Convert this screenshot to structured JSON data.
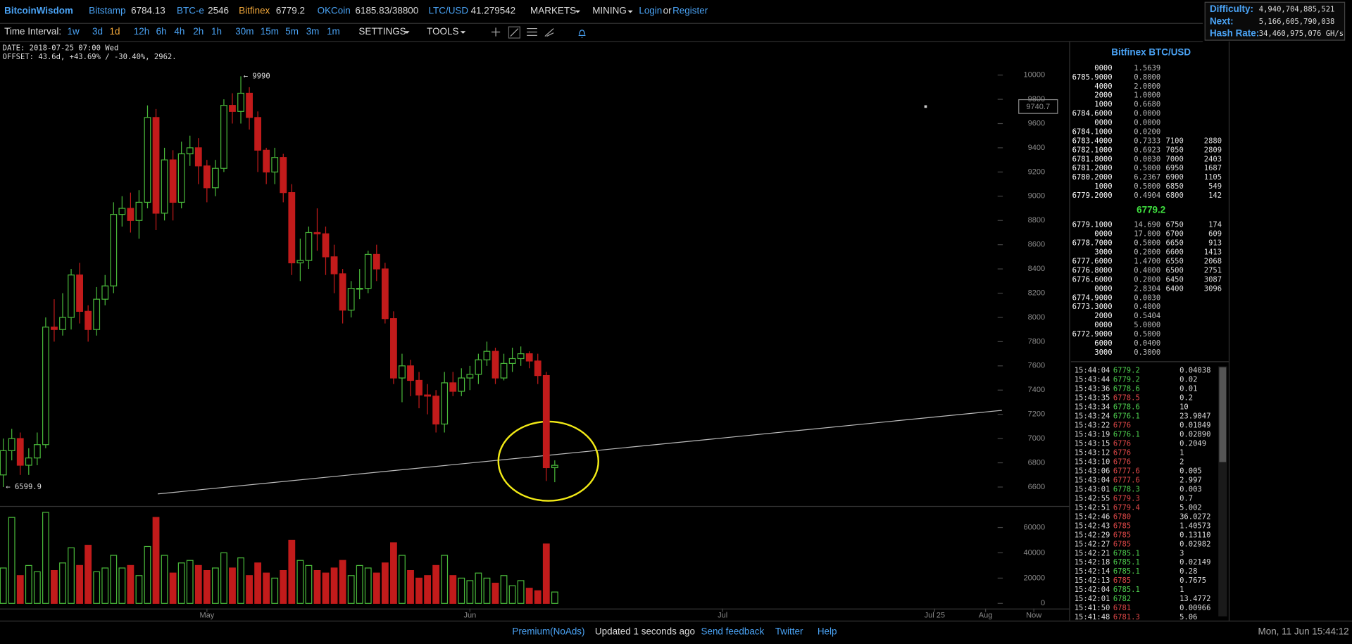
{
  "header": {
    "logo": "BitcoinWisdom",
    "tickers": [
      {
        "name": "Bitstamp",
        "price": "6784.13"
      },
      {
        "name": "BTC-e",
        "price": "2546"
      },
      {
        "name": "Bitfinex",
        "price": "6779.2"
      },
      {
        "name": "OKCoin",
        "price": "6185.83/38800"
      },
      {
        "name": "LTC/USD",
        "price": "41.279542"
      }
    ],
    "menus": [
      "MARKETS",
      "MINING"
    ],
    "login": "Login",
    "or": "or",
    "register": "Register",
    "stats": [
      {
        "label": "Difficulty:",
        "value": "4,940,704,885,521"
      },
      {
        "label": "Next:",
        "value": "5,166,605,790,038"
      },
      {
        "label": "Hash Rate:",
        "value": "34,460,975,076 GH/s"
      }
    ]
  },
  "toolbar": {
    "label": "Time Interval:",
    "intervals": [
      "1w",
      "3d",
      "1d",
      "12h",
      "6h",
      "4h",
      "2h",
      "1h",
      "30m",
      "15m",
      "5m",
      "3m",
      "1m"
    ],
    "settings": "SETTINGS",
    "tools": "TOOLS"
  },
  "info": {
    "date": "DATE: 2018-07-25 07:00 Wed",
    "offset": "OFFSET: 43.6d, +43.69% / -30.40%, 2962."
  },
  "chart_data": [
    {
      "type": "candlestick",
      "up_color": "#49b83a",
      "down_color": "#c21b1b",
      "open": [
        6700,
        6900,
        7000,
        6780,
        6840,
        6950,
        7920,
        7900,
        8000,
        8350,
        8050,
        7900,
        8150,
        8260,
        8850,
        8900,
        8800,
        8950,
        9650,
        8860,
        9300,
        8950,
        9350,
        9400,
        9250,
        9070,
        9230,
        9750,
        9700,
        9850,
        9650,
        9380,
        9200,
        9320,
        9030,
        8450,
        8470,
        8700,
        8690,
        8500,
        8360,
        8060,
        8240,
        8240,
        8520,
        8400,
        7990,
        7500,
        7600,
        7480,
        7360,
        7350,
        7120,
        7460,
        7390,
        7500,
        7530,
        7650,
        7720,
        7500,
        7620,
        7660,
        7700,
        7640,
        7520,
        6760
      ],
      "high": [
        7000,
        7080,
        7050,
        6920,
        7050,
        8000,
        8150,
        8200,
        8400,
        8450,
        8100,
        8250,
        8350,
        8950,
        9000,
        9030,
        9050,
        9750,
        9720,
        9400,
        9380,
        9450,
        9500,
        9480,
        9300,
        9300,
        9800,
        9850,
        9990,
        9900,
        9700,
        9400,
        9400,
        9350,
        9100,
        8650,
        8750,
        8900,
        8750,
        8600,
        8400,
        8300,
        8400,
        8550,
        8600,
        8450,
        8050,
        7700,
        7650,
        7550,
        7450,
        7400,
        7550,
        7550,
        7580,
        7600,
        7700,
        7800,
        7750,
        7700,
        7750,
        7760,
        7720,
        7700,
        7550,
        6820
      ],
      "low": [
        6599.9,
        6820,
        6700,
        6700,
        6780,
        6920,
        7800,
        7850,
        7900,
        7950,
        7800,
        7850,
        8100,
        8200,
        8750,
        8700,
        8650,
        8900,
        8720,
        8800,
        8800,
        8900,
        9250,
        9100,
        8950,
        9000,
        9200,
        9600,
        9600,
        9550,
        9200,
        9100,
        9100,
        8950,
        8350,
        8300,
        8400,
        8550,
        8350,
        8200,
        7950,
        8000,
        8150,
        8200,
        8300,
        7950,
        7450,
        7300,
        7350,
        7250,
        7200,
        7050,
        7050,
        7350,
        7350,
        7400,
        7450,
        7600,
        7450,
        7480,
        7550,
        7600,
        7580,
        7450,
        6650,
        6640
      ],
      "close": [
        6900,
        7000,
        6780,
        6840,
        6950,
        7920,
        7900,
        8000,
        8350,
        8050,
        7900,
        8150,
        8260,
        8850,
        8900,
        8800,
        8950,
        9650,
        8860,
        9300,
        8950,
        9350,
        9400,
        9250,
        9070,
        9230,
        9750,
        9700,
        9850,
        9650,
        9380,
        9200,
        9320,
        9030,
        8450,
        8470,
        8700,
        8690,
        8500,
        8360,
        8060,
        8240,
        8240,
        8520,
        8400,
        7990,
        7500,
        7600,
        7480,
        7360,
        7350,
        7120,
        7460,
        7390,
        7500,
        7530,
        7650,
        7720,
        7500,
        7620,
        7660,
        7700,
        7640,
        7520,
        6760,
        6779.2
      ],
      "ylim": [
        6457.7,
        10263
      ],
      "yticks": [
        6600,
        6800,
        7000,
        7200,
        7400,
        7600,
        7800,
        8000,
        8200,
        8400,
        8600,
        8800,
        9000,
        9200,
        9400,
        9600,
        9800,
        10000
      ],
      "xtick_labels": [
        "May",
        "Jun",
        "Jul",
        "Jul 25",
        "Aug",
        "Now"
      ],
      "annotations": [
        "← 9990",
        "← 6599.9"
      ],
      "price_tag": "9740.7"
    },
    {
      "type": "bar",
      "ylim": [
        0,
        75000
      ],
      "yticks": [
        0,
        20000,
        40000,
        60000
      ],
      "values": [
        28000,
        68000,
        22000,
        30000,
        25000,
        72000,
        26000,
        32000,
        44000,
        30000,
        46000,
        25000,
        28000,
        38000,
        28000,
        30000,
        22000,
        45000,
        68000,
        38000,
        24000,
        32000,
        34000,
        30000,
        26000,
        28000,
        40000,
        28000,
        36000,
        22000,
        32000,
        24000,
        20000,
        26000,
        50000,
        34000,
        30000,
        26000,
        24000,
        28000,
        34000,
        22000,
        30000,
        28000,
        24000,
        32000,
        48000,
        38000,
        26000,
        20000,
        22000,
        30000,
        38000,
        22000,
        20000,
        18000,
        24000,
        20000,
        16000,
        22000,
        14000,
        18000,
        12000,
        10000,
        47000,
        9000
      ]
    }
  ],
  "orderbook": {
    "title": "Bitfinex BTC/USD",
    "asks": [
      [
        "0000",
        "1.5639"
      ],
      [
        "6785.9000",
        "0.8000"
      ],
      [
        "4000",
        "2.0000"
      ],
      [
        "2000",
        "1.0000"
      ],
      [
        "1000",
        "0.6680"
      ],
      [
        "6784.6000",
        "0.0000"
      ],
      [
        "0000",
        "0.0000"
      ],
      [
        "6784.1000",
        "0.0200"
      ],
      [
        "6783.4000",
        "0.7333",
        "7100",
        "2880"
      ],
      [
        "6782.1000",
        "0.6923",
        "7050",
        "2809"
      ],
      [
        "6781.8000",
        "0.0030",
        "7000",
        "2403"
      ],
      [
        "6781.2000",
        "0.5000",
        "6950",
        "1687"
      ],
      [
        "6780.2000",
        "6.2367",
        "6900",
        "1105"
      ],
      [
        "1000",
        "0.5000",
        "6850",
        "549"
      ],
      [
        "6779.2000",
        "0.4904",
        "6800",
        "142"
      ]
    ],
    "last": "6779.2",
    "bids": [
      [
        "6779.1000",
        "14.690",
        "6750",
        "174"
      ],
      [
        "0000",
        "17.000",
        "6700",
        "609"
      ],
      [
        "6778.7000",
        "0.5000",
        "6650",
        "913"
      ],
      [
        "3000",
        "0.2000",
        "6600",
        "1413"
      ],
      [
        "6777.6000",
        "1.4700",
        "6550",
        "2068"
      ],
      [
        "6776.8000",
        "0.4000",
        "6500",
        "2751"
      ],
      [
        "6776.6000",
        "0.2000",
        "6450",
        "3087"
      ],
      [
        "0000",
        "2.8304",
        "6400",
        "3096"
      ],
      [
        "6774.9000",
        "0.0030"
      ],
      [
        "6773.3000",
        "0.4000"
      ],
      [
        "2000",
        "0.5404"
      ],
      [
        "0000",
        "5.0000"
      ],
      [
        "6772.9000",
        "0.5000"
      ],
      [
        "6000",
        "0.0400"
      ],
      [
        "3000",
        "0.3000"
      ]
    ]
  },
  "trades": [
    [
      "15:44:04",
      "6779.2",
      "0.04038",
      "up"
    ],
    [
      "15:43:44",
      "6779.2",
      "0.02",
      "up"
    ],
    [
      "15:43:36",
      "6778.6",
      "0.01",
      "up"
    ],
    [
      "15:43:35",
      "6778.5",
      "0.2",
      "down"
    ],
    [
      "15:43:34",
      "6778.6",
      "10",
      "up"
    ],
    [
      "15:43:24",
      "6776.1",
      "23.9047",
      "up"
    ],
    [
      "15:43:22",
      "6776",
      "0.01849",
      "down"
    ],
    [
      "15:43:19",
      "6776.1",
      "0.02890",
      "up"
    ],
    [
      "15:43:15",
      "6776",
      "0.2049",
      "down"
    ],
    [
      "15:43:12",
      "6776",
      "1",
      "down"
    ],
    [
      "15:43:10",
      "6776",
      "2",
      "down"
    ],
    [
      "15:43:06",
      "6777.6",
      "0.005",
      "down"
    ],
    [
      "15:43:04",
      "6777.6",
      "2.997",
      "down"
    ],
    [
      "15:43:01",
      "6778.3",
      "0.003",
      "up"
    ],
    [
      "15:42:55",
      "6779.3",
      "0.7",
      "down"
    ],
    [
      "15:42:51",
      "6779.4",
      "5.002",
      "down"
    ],
    [
      "15:42:46",
      "6780",
      "36.0272",
      "down"
    ],
    [
      "15:42:43",
      "6785",
      "1.40573",
      "down"
    ],
    [
      "15:42:29",
      "6785",
      "0.13110",
      "down"
    ],
    [
      "15:42:27",
      "6785",
      "0.02982",
      "down"
    ],
    [
      "15:42:21",
      "6785.1",
      "3",
      "up"
    ],
    [
      "15:42:18",
      "6785.1",
      "0.02149",
      "up"
    ],
    [
      "15:42:14",
      "6785.1",
      "0.28",
      "up"
    ],
    [
      "15:42:13",
      "6785",
      "0.7675",
      "down"
    ],
    [
      "15:42:04",
      "6785.1",
      "1",
      "up"
    ],
    [
      "15:42:01",
      "6782",
      "13.4772",
      "up"
    ],
    [
      "15:41:50",
      "6781",
      "0.00966",
      "down"
    ],
    [
      "15:41:48",
      "6781.3",
      "5.06",
      "down"
    ]
  ],
  "footer": {
    "premium": "Premium(NoAds)",
    "updated": "Updated 1 seconds ago",
    "feedback": "Send feedback",
    "twitter": "Twitter",
    "help": "Help",
    "clock": "Mon, 11 Jun 15:44:12"
  }
}
